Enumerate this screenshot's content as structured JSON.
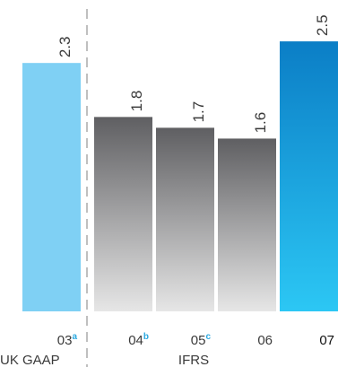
{
  "chart_data": {
    "type": "bar",
    "title": "",
    "categories": [
      "03",
      "04",
      "05",
      "06",
      "07"
    ],
    "category_superscripts": [
      "a",
      "b",
      "c",
      "",
      ""
    ],
    "values": [
      2.3,
      1.8,
      1.7,
      1.6,
      2.5
    ],
    "value_labels": [
      "2.3",
      "1.8",
      "1.7",
      "1.6",
      "2.5"
    ],
    "ylim": [
      0,
      2.8
    ],
    "groups": [
      {
        "label": "UK GAAP",
        "categories": [
          "03"
        ]
      },
      {
        "label": "IFRS",
        "categories": [
          "04",
          "05",
          "06",
          "07"
        ]
      }
    ],
    "bar_styles": [
      "light-blue",
      "grey",
      "grey",
      "grey",
      "blue"
    ],
    "colors": {
      "light_blue": "#7fd0f4",
      "grey_top": "#5f5f62",
      "grey_bottom": "#e6e6e6",
      "blue_top": "#0b7ec6",
      "blue_bottom": "#2cc7f4",
      "accent": "#29a8e0",
      "divider": "#bfbfbf",
      "text": "#3a3a3a"
    },
    "grid": false
  }
}
